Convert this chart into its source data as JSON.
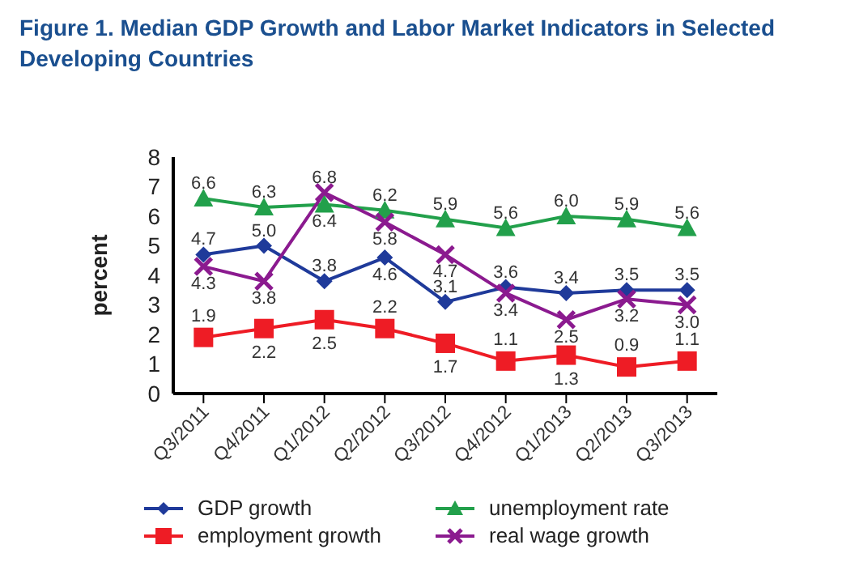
{
  "chart_data": {
    "type": "line",
    "title": "Figure 1. Median GDP Growth and Labor Market Indicators in Selected Developing Countries",
    "ylabel": "percent",
    "categories": [
      "Q3/2011",
      "Q4/2011",
      "Q1/2012",
      "Q2/2012",
      "Q3/2012",
      "Q4/2012",
      "Q1/2013",
      "Q2/2013",
      "Q3/2013"
    ],
    "series": [
      {
        "name": "GDP growth",
        "color": "#1f3a9a",
        "marker": "diamond",
        "values": [
          4.7,
          5.0,
          3.8,
          4.6,
          3.1,
          3.6,
          3.4,
          3.5,
          3.5
        ],
        "value_labels": [
          "4.7",
          "5.0",
          "3.8",
          "4.6",
          "3.1",
          "3.6",
          "3.4",
          "3.5",
          "3.5"
        ]
      },
      {
        "name": "unemployment rate",
        "color": "#22a04b",
        "marker": "triangle",
        "values": [
          6.6,
          6.3,
          6.4,
          6.2,
          5.9,
          5.6,
          6.0,
          5.9,
          5.6
        ],
        "value_labels": [
          "6.6",
          "6.3",
          "6.4",
          "6.2",
          "5.9",
          "5.6",
          "6.0",
          "5.9",
          "5.6"
        ]
      },
      {
        "name": "employment growth",
        "color": "#ee1c25",
        "marker": "square",
        "values": [
          1.9,
          2.2,
          2.5,
          2.2,
          1.7,
          1.1,
          1.3,
          0.9,
          1.1
        ],
        "value_labels": [
          "1.9",
          "2.2",
          "2.5",
          "2.2",
          "1.7",
          "1.1",
          "1.3",
          "0.9",
          "1.1"
        ]
      },
      {
        "name": "real wage growth",
        "color": "#8b1a8f",
        "marker": "cross",
        "values": [
          4.3,
          3.8,
          6.8,
          5.8,
          4.7,
          3.4,
          2.5,
          3.2,
          3.0
        ],
        "value_labels": [
          "4.3",
          "3.8",
          "6.8",
          "5.8",
          "4.7",
          "3.4",
          "2.5",
          "3.2",
          "3.0"
        ]
      }
    ],
    "ylim": [
      0,
      8
    ],
    "yticks": [
      0,
      1,
      2,
      3,
      4,
      5,
      6,
      7,
      8
    ],
    "grid": false,
    "legend": "bottom"
  }
}
